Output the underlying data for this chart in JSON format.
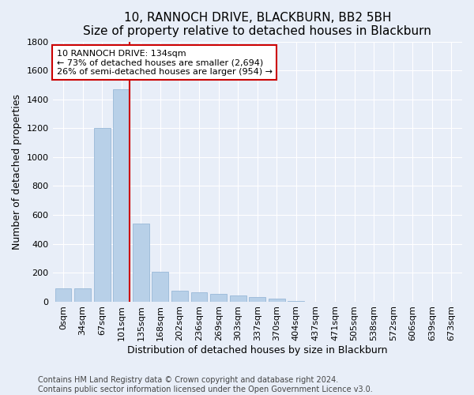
{
  "title": "10, RANNOCH DRIVE, BLACKBURN, BB2 5BH",
  "subtitle": "Size of property relative to detached houses in Blackburn",
  "xlabel": "Distribution of detached houses by size in Blackburn",
  "ylabel": "Number of detached properties",
  "bar_labels": [
    "0sqm",
    "34sqm",
    "67sqm",
    "101sqm",
    "135sqm",
    "168sqm",
    "202sqm",
    "236sqm",
    "269sqm",
    "303sqm",
    "337sqm",
    "370sqm",
    "404sqm",
    "437sqm",
    "471sqm",
    "505sqm",
    "538sqm",
    "572sqm",
    "606sqm",
    "639sqm",
    "673sqm"
  ],
  "bar_values": [
    90,
    90,
    1200,
    1470,
    540,
    205,
    75,
    65,
    50,
    40,
    30,
    20,
    5,
    0,
    0,
    0,
    0,
    0,
    0,
    0,
    0
  ],
  "bar_color": "#b8d0e8",
  "bar_edge_color": "#99b8d8",
  "property_line_bar_idx": 3,
  "annotation_text": "10 RANNOCH DRIVE: 134sqm\n← 73% of detached houses are smaller (2,694)\n26% of semi-detached houses are larger (954) →",
  "annotation_box_color": "#ffffff",
  "annotation_box_edge": "#cc0000",
  "vline_color": "#cc0000",
  "ylim": [
    0,
    1800
  ],
  "yticks": [
    0,
    200,
    400,
    600,
    800,
    1000,
    1200,
    1400,
    1600,
    1800
  ],
  "bg_color": "#e8eef8",
  "plot_bg_color": "#e8eef8",
  "grid_color": "#ffffff",
  "footer_line1": "Contains HM Land Registry data © Crown copyright and database right 2024.",
  "footer_line2": "Contains public sector information licensed under the Open Government Licence v3.0.",
  "title_fontsize": 11,
  "subtitle_fontsize": 10,
  "xlabel_fontsize": 9,
  "ylabel_fontsize": 9,
  "tick_fontsize": 8,
  "footer_fontsize": 7,
  "annot_fontsize": 8
}
